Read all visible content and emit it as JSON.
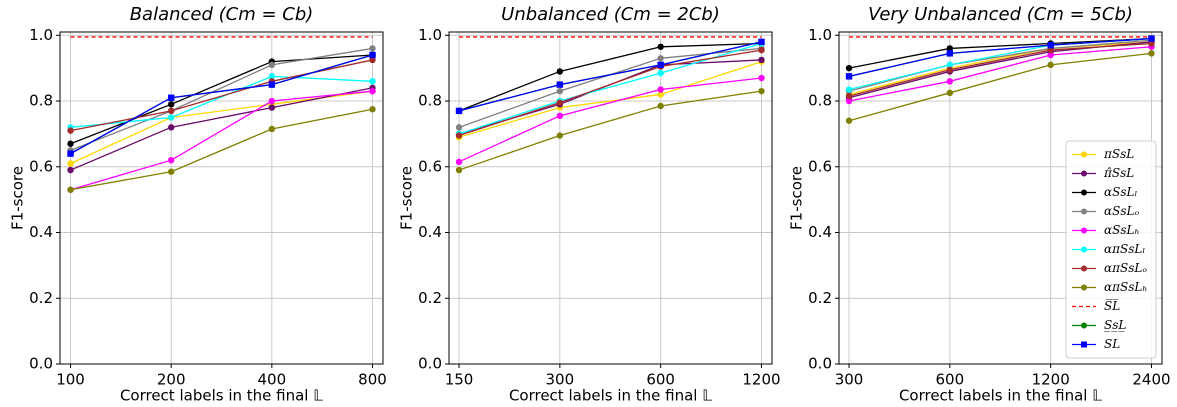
{
  "chart_data": [
    {
      "type": "line",
      "title": "Balanced (Cm = Cb)",
      "xlabel": "Correct labels in the final 𝕃",
      "ylabel": "F1-score",
      "x": [
        100,
        200,
        400,
        800
      ],
      "xscale": "log",
      "xlim": [
        93,
        860
      ],
      "xticks": [
        100,
        200,
        400,
        800
      ],
      "ylim": [
        0,
        1.01
      ],
      "yticks": [
        {
          "value": 0,
          "label": "0.0"
        },
        0.2,
        0.4,
        0.6,
        0.8,
        {
          "value": 1,
          "label": "1.0"
        }
      ],
      "grid": true,
      "series": [
        {
          "color": "#ffd700",
          "marker": "circle",
          "style": "solid",
          "values": [
            0.61,
            0.75,
            0.79,
            0.83
          ]
        },
        {
          "color": "#6a0a6a",
          "marker": "circle",
          "style": "solid",
          "values": [
            0.59,
            0.72,
            0.78,
            0.84
          ]
        },
        {
          "color": "#000000",
          "marker": "circle",
          "style": "solid",
          "values": [
            0.67,
            0.79,
            0.92,
            0.94
          ]
        },
        {
          "color": "#808080",
          "marker": "circle",
          "style": "solid",
          "values": [
            0.65,
            0.77,
            0.91,
            0.96
          ]
        },
        {
          "color": "#ff00ff",
          "marker": "circle",
          "style": "solid",
          "values": [
            0.53,
            0.62,
            0.8,
            0.83
          ]
        },
        {
          "color": "#00ffff",
          "marker": "circle",
          "style": "solid",
          "values": [
            0.72,
            0.75,
            0.875,
            0.86
          ]
        },
        {
          "color": "#a52a2a",
          "marker": "circle",
          "style": "solid",
          "values": [
            0.71,
            0.77,
            0.86,
            0.925
          ]
        },
        {
          "color": "#808000",
          "marker": "circle",
          "style": "solid",
          "values": [
            0.53,
            0.585,
            0.715,
            0.775
          ]
        },
        {
          "color": "#ff0000",
          "marker": "none",
          "style": "dashed",
          "values": [
            0.995,
            0.995,
            0.995,
            0.995
          ]
        },
        {
          "color": "#008000",
          "marker": "circle",
          "style": "solid",
          "values": [
            0.64,
            0.81,
            0.85,
            0.94
          ]
        },
        {
          "color": "#0000ff",
          "marker": "square",
          "style": "solid",
          "values": [
            0.64,
            0.81,
            0.85,
            0.94
          ]
        }
      ]
    },
    {
      "type": "line",
      "title": "Unbalanced (Cm = 2Cb)",
      "xlabel": "Correct labels in the final 𝕃",
      "ylabel": "F1-score",
      "x": [
        150,
        300,
        600,
        1200
      ],
      "xscale": "log",
      "xlim": [
        140,
        1290
      ],
      "xticks": [
        150,
        300,
        600,
        1200
      ],
      "ylim": [
        0,
        1.01
      ],
      "yticks": [
        {
          "value": 0,
          "label": "0.0"
        },
        0.2,
        0.4,
        0.6,
        0.8,
        {
          "value": 1,
          "label": "1.0"
        }
      ],
      "grid": true,
      "series": [
        {
          "color": "#ffd700",
          "marker": "circle",
          "style": "solid",
          "values": [
            0.69,
            0.78,
            0.82,
            0.92
          ]
        },
        {
          "color": "#6a0a6a",
          "marker": "circle",
          "style": "solid",
          "values": [
            0.7,
            0.79,
            0.91,
            0.925
          ]
        },
        {
          "color": "#000000",
          "marker": "circle",
          "style": "solid",
          "values": [
            0.77,
            0.89,
            0.965,
            0.975
          ]
        },
        {
          "color": "#808080",
          "marker": "circle",
          "style": "solid",
          "values": [
            0.72,
            0.83,
            0.93,
            0.96
          ]
        },
        {
          "color": "#ff00ff",
          "marker": "circle",
          "style": "solid",
          "values": [
            0.615,
            0.755,
            0.835,
            0.87
          ]
        },
        {
          "color": "#00ffff",
          "marker": "circle",
          "style": "solid",
          "values": [
            0.7,
            0.8,
            0.885,
            0.975
          ]
        },
        {
          "color": "#a52a2a",
          "marker": "circle",
          "style": "solid",
          "values": [
            0.695,
            0.795,
            0.905,
            0.955
          ]
        },
        {
          "color": "#808000",
          "marker": "circle",
          "style": "solid",
          "values": [
            0.59,
            0.695,
            0.785,
            0.83
          ]
        },
        {
          "color": "#ff0000",
          "marker": "none",
          "style": "dashed",
          "values": [
            0.995,
            0.995,
            0.995,
            0.995
          ]
        },
        {
          "color": "#008000",
          "marker": "circle",
          "style": "solid",
          "values": [
            0.77,
            0.85,
            0.91,
            0.98
          ]
        },
        {
          "color": "#0000ff",
          "marker": "square",
          "style": "solid",
          "values": [
            0.77,
            0.85,
            0.91,
            0.98
          ]
        }
      ]
    },
    {
      "type": "line",
      "title": "Very Unbalanced (Cm = 5Cb)",
      "xlabel": "Correct labels in the final 𝕃",
      "ylabel": "F1-score",
      "x": [
        300,
        600,
        1200,
        2400
      ],
      "xscale": "log",
      "xlim": [
        280,
        2580
      ],
      "xticks": [
        300,
        600,
        1200,
        2400
      ],
      "ylim": [
        0,
        1.01
      ],
      "yticks": [
        {
          "value": 0,
          "label": "0.0"
        },
        0.2,
        0.4,
        0.6,
        0.8,
        {
          "value": 1,
          "label": "1.0"
        }
      ],
      "grid": true,
      "legend": "lower right",
      "series": [
        {
          "name": "πSsL",
          "color": "#ffd700",
          "marker": "circle",
          "style": "solid",
          "values": [
            0.82,
            0.9,
            0.96,
            0.98
          ]
        },
        {
          "name": "π̂SsL",
          "color": "#6a0a6a",
          "marker": "circle",
          "style": "solid",
          "values": [
            0.81,
            0.89,
            0.95,
            0.98
          ]
        },
        {
          "name": "αSsLₗ",
          "color": "#000000",
          "marker": "circle",
          "style": "solid",
          "values": [
            0.9,
            0.96,
            0.975,
            0.99
          ]
        },
        {
          "name": "αSsLₒ",
          "color": "#808080",
          "marker": "circle",
          "style": "solid",
          "values": [
            0.83,
            0.91,
            0.96,
            0.985
          ]
        },
        {
          "name": "αSsLₕ",
          "color": "#ff00ff",
          "marker": "circle",
          "style": "solid",
          "values": [
            0.8,
            0.86,
            0.94,
            0.965
          ]
        },
        {
          "name": "απSsLₗ",
          "color": "#00ffff",
          "marker": "circle",
          "style": "solid",
          "values": [
            0.835,
            0.91,
            0.97,
            0.99
          ]
        },
        {
          "name": "απSsLₒ",
          "color": "#a52a2a",
          "marker": "circle",
          "style": "solid",
          "values": [
            0.815,
            0.895,
            0.955,
            0.975
          ]
        },
        {
          "name": "απSsLₕ",
          "color": "#808000",
          "marker": "circle",
          "style": "solid",
          "values": [
            0.74,
            0.825,
            0.91,
            0.945
          ]
        },
        {
          "name": "S̅L̅",
          "color": "#ff0000",
          "marker": "none",
          "style": "dashed",
          "values": [
            0.995,
            0.995,
            0.995,
            0.995
          ]
        },
        {
          "name": "S̲s̲L̲",
          "color": "#008000",
          "marker": "circle",
          "style": "solid",
          "values": [
            0.875,
            0.945,
            0.97,
            0.99
          ]
        },
        {
          "name": "SL",
          "color": "#0000ff",
          "marker": "square",
          "style": "solid",
          "values": [
            0.875,
            0.945,
            0.97,
            0.99
          ]
        }
      ]
    }
  ]
}
